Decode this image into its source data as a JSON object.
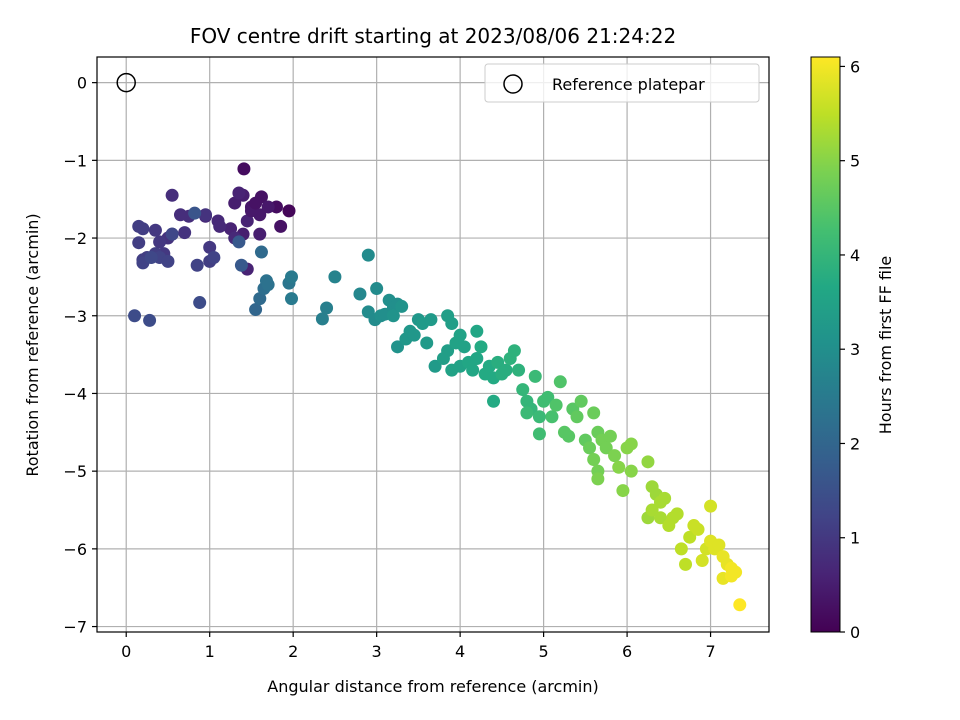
{
  "chart_data": {
    "type": "scatter",
    "title": "FOV centre drift starting at 2023/08/06 21:24:22",
    "xlabel": "Angular distance from reference (arcmin)",
    "ylabel": "Rotation from reference (arcmin)",
    "xlim": [
      -0.35,
      7.7
    ],
    "ylim": [
      -7.07,
      0.33
    ],
    "x_ticks": [
      0,
      1,
      2,
      3,
      4,
      5,
      6,
      7
    ],
    "y_ticks": [
      0,
      -1,
      -2,
      -3,
      -4,
      -5,
      -6,
      -7
    ],
    "grid": true,
    "legend": {
      "position": "top-right",
      "entries": [
        "Reference platepar"
      ]
    },
    "reference_point": {
      "x": 0,
      "y": 0,
      "label": "Reference platepar"
    },
    "colorbar": {
      "label": "Hours from first FF file",
      "min": 0,
      "max": 6.1,
      "ticks": [
        0,
        1,
        2,
        3,
        4,
        5,
        6
      ],
      "colormap": "viridis"
    },
    "series": [
      {
        "points": [
          [
            1.41,
            -1.11,
            0.2
          ],
          [
            1.95,
            -1.65,
            0.1
          ],
          [
            1.8,
            -1.6,
            0.2
          ],
          [
            1.85,
            -1.85,
            0.3
          ],
          [
            1.62,
            -1.47,
            0.3
          ],
          [
            1.4,
            -1.45,
            0.5
          ],
          [
            1.3,
            -1.55,
            0.5
          ],
          [
            1.5,
            -1.6,
            0.4
          ],
          [
            1.6,
            -1.7,
            0.4
          ],
          [
            1.35,
            -1.42,
            0.6
          ],
          [
            1.45,
            -1.78,
            0.6
          ],
          [
            1.25,
            -1.88,
            0.6
          ],
          [
            1.4,
            -1.95,
            0.5
          ],
          [
            1.6,
            -1.95,
            0.5
          ],
          [
            1.5,
            -1.65,
            0.4
          ],
          [
            1.3,
            -2.0,
            0.7
          ],
          [
            1.45,
            -2.4,
            0.6
          ],
          [
            1.55,
            -1.55,
            0.3
          ],
          [
            1.7,
            -1.6,
            0.4
          ],
          [
            1.1,
            -1.78,
            0.7
          ],
          [
            1.12,
            -1.85,
            0.7
          ],
          [
            0.95,
            -1.72,
            0.7
          ],
          [
            0.75,
            -1.72,
            0.8
          ],
          [
            0.65,
            -1.7,
            0.8
          ],
          [
            0.55,
            -1.45,
            0.8
          ],
          [
            0.55,
            -1.95,
            0.9
          ],
          [
            0.7,
            -1.93,
            0.9
          ],
          [
            0.5,
            -2.0,
            0.9
          ],
          [
            0.45,
            -2.2,
            1.0
          ],
          [
            0.4,
            -2.05,
            1.0
          ],
          [
            0.35,
            -1.9,
            1.0
          ],
          [
            0.15,
            -1.85,
            1.1
          ],
          [
            0.2,
            -1.88,
            1.1
          ],
          [
            0.15,
            -2.06,
            1.1
          ],
          [
            0.2,
            -2.28,
            1.1
          ],
          [
            0.25,
            -2.25,
            1.1
          ],
          [
            0.35,
            -2.2,
            1.1
          ],
          [
            0.4,
            -2.25,
            1.2
          ],
          [
            0.5,
            -2.3,
            1.2
          ],
          [
            0.2,
            -2.32,
            1.2
          ],
          [
            1.0,
            -2.12,
            1.0
          ],
          [
            1.0,
            -2.3,
            1.1
          ],
          [
            1.05,
            -2.25,
            1.2
          ],
          [
            0.85,
            -2.35,
            1.2
          ],
          [
            0.95,
            -1.7,
            0.9
          ],
          [
            0.82,
            -1.68,
            1.6
          ],
          [
            0.55,
            -1.95,
            1.3
          ],
          [
            0.3,
            -2.25,
            1.3
          ],
          [
            0.1,
            -3.0,
            1.4
          ],
          [
            0.28,
            -3.06,
            1.4
          ],
          [
            0.88,
            -2.83,
            1.4
          ],
          [
            1.35,
            -2.05,
            1.7
          ],
          [
            1.38,
            -2.35,
            1.7
          ],
          [
            1.62,
            -2.18,
            2.1
          ],
          [
            1.55,
            -2.92,
            2.0
          ],
          [
            1.6,
            -2.78,
            2.1
          ],
          [
            1.65,
            -2.65,
            2.2
          ],
          [
            1.68,
            -2.55,
            2.3
          ],
          [
            1.7,
            -2.6,
            2.3
          ],
          [
            1.95,
            -2.58,
            2.4
          ],
          [
            1.98,
            -2.5,
            2.5
          ],
          [
            1.98,
            -2.78,
            2.5
          ],
          [
            2.35,
            -3.04,
            2.6
          ],
          [
            2.4,
            -2.9,
            2.6
          ],
          [
            2.5,
            -2.5,
            2.7
          ],
          [
            2.8,
            -2.72,
            2.8
          ],
          [
            2.9,
            -2.95,
            2.9
          ],
          [
            2.98,
            -3.05,
            2.9
          ],
          [
            3.0,
            -2.65,
            2.9
          ],
          [
            3.05,
            -3.0,
            3.0
          ],
          [
            3.1,
            -2.98,
            3.0
          ],
          [
            3.15,
            -2.8,
            3.0
          ],
          [
            3.2,
            -2.9,
            3.0
          ],
          [
            3.25,
            -2.85,
            3.0
          ],
          [
            3.2,
            -3.0,
            3.1
          ],
          [
            3.25,
            -3.4,
            3.1
          ],
          [
            3.3,
            -2.88,
            3.1
          ],
          [
            3.35,
            -3.3,
            3.2
          ],
          [
            3.4,
            -3.2,
            3.2
          ],
          [
            3.45,
            -3.25,
            3.2
          ],
          [
            3.5,
            -3.05,
            3.2
          ],
          [
            3.55,
            -3.1,
            3.3
          ],
          [
            3.6,
            -3.35,
            3.3
          ],
          [
            3.65,
            -3.05,
            3.3
          ],
          [
            3.7,
            -3.65,
            3.3
          ],
          [
            2.9,
            -2.22,
            2.9
          ],
          [
            3.85,
            -3.0,
            3.4
          ],
          [
            3.9,
            -3.1,
            3.4
          ],
          [
            3.8,
            -3.55,
            3.4
          ],
          [
            3.85,
            -3.45,
            3.4
          ],
          [
            3.9,
            -3.7,
            3.5
          ],
          [
            3.95,
            -3.35,
            3.5
          ],
          [
            4.0,
            -3.25,
            3.5
          ],
          [
            4.05,
            -3.4,
            3.5
          ],
          [
            4.0,
            -3.65,
            3.5
          ],
          [
            4.1,
            -3.6,
            3.6
          ],
          [
            4.15,
            -3.7,
            3.6
          ],
          [
            4.2,
            -3.2,
            3.6
          ],
          [
            4.2,
            -3.55,
            3.6
          ],
          [
            4.25,
            -3.4,
            3.7
          ],
          [
            4.3,
            -3.75,
            3.7
          ],
          [
            4.35,
            -3.65,
            3.7
          ],
          [
            4.4,
            -3.8,
            3.7
          ],
          [
            4.4,
            -4.1,
            3.7
          ],
          [
            4.45,
            -3.6,
            3.8
          ],
          [
            4.5,
            -3.75,
            3.8
          ],
          [
            4.55,
            -3.7,
            3.8
          ],
          [
            4.6,
            -3.55,
            3.9
          ],
          [
            4.65,
            -3.45,
            3.9
          ],
          [
            4.7,
            -3.7,
            3.9
          ],
          [
            4.75,
            -3.95,
            4.0
          ],
          [
            4.8,
            -4.1,
            4.0
          ],
          [
            4.85,
            -4.2,
            4.0
          ],
          [
            4.9,
            -3.78,
            4.1
          ],
          [
            4.95,
            -4.3,
            4.1
          ],
          [
            5.0,
            -4.1,
            4.2
          ],
          [
            5.05,
            -4.05,
            4.2
          ],
          [
            5.1,
            -4.3,
            4.3
          ],
          [
            4.8,
            -4.25,
            4.1
          ],
          [
            4.95,
            -4.52,
            4.2
          ],
          [
            5.15,
            -4.15,
            4.4
          ],
          [
            5.2,
            -3.85,
            4.4
          ],
          [
            5.25,
            -4.5,
            4.5
          ],
          [
            5.3,
            -4.55,
            4.5
          ],
          [
            5.35,
            -4.2,
            4.5
          ],
          [
            5.4,
            -4.3,
            4.6
          ],
          [
            5.45,
            -4.1,
            4.6
          ],
          [
            5.5,
            -4.6,
            4.6
          ],
          [
            5.55,
            -4.7,
            4.7
          ],
          [
            5.6,
            -4.25,
            4.7
          ],
          [
            5.65,
            -4.5,
            4.7
          ],
          [
            5.7,
            -4.6,
            4.8
          ],
          [
            5.75,
            -4.7,
            4.8
          ],
          [
            5.8,
            -4.55,
            4.8
          ],
          [
            5.85,
            -4.8,
            4.9
          ],
          [
            5.6,
            -4.85,
            4.8
          ],
          [
            5.65,
            -5.0,
            4.8
          ],
          [
            5.65,
            -5.1,
            4.9
          ],
          [
            5.9,
            -4.95,
            5.0
          ],
          [
            5.95,
            -5.25,
            5.0
          ],
          [
            6.0,
            -4.7,
            5.0
          ],
          [
            6.05,
            -4.65,
            5.0
          ],
          [
            6.05,
            -5.0,
            5.0
          ],
          [
            6.25,
            -4.88,
            5.1
          ],
          [
            6.3,
            -5.2,
            5.2
          ],
          [
            6.35,
            -5.3,
            5.2
          ],
          [
            6.4,
            -5.4,
            5.3
          ],
          [
            6.45,
            -5.35,
            5.3
          ],
          [
            6.25,
            -5.6,
            5.2
          ],
          [
            6.3,
            -5.5,
            5.3
          ],
          [
            6.4,
            -5.6,
            5.3
          ],
          [
            6.5,
            -5.7,
            5.4
          ],
          [
            6.55,
            -5.6,
            5.4
          ],
          [
            6.6,
            -5.55,
            5.4
          ],
          [
            6.65,
            -6.0,
            5.5
          ],
          [
            6.7,
            -6.2,
            5.5
          ],
          [
            6.75,
            -5.85,
            5.5
          ],
          [
            6.8,
            -5.7,
            5.6
          ],
          [
            6.85,
            -5.75,
            5.6
          ],
          [
            6.9,
            -6.15,
            5.7
          ],
          [
            6.95,
            -6.0,
            5.7
          ],
          [
            7.0,
            -5.45,
            5.7
          ],
          [
            7.0,
            -5.9,
            5.8
          ],
          [
            7.05,
            -6.0,
            5.8
          ],
          [
            7.1,
            -5.95,
            5.8
          ],
          [
            7.15,
            -6.1,
            5.9
          ],
          [
            7.2,
            -6.2,
            5.9
          ],
          [
            7.25,
            -6.25,
            6.0
          ],
          [
            7.3,
            -6.3,
            6.0
          ],
          [
            7.15,
            -6.38,
            5.9
          ],
          [
            7.25,
            -6.35,
            6.0
          ],
          [
            7.35,
            -6.72,
            6.1
          ]
        ]
      }
    ]
  }
}
